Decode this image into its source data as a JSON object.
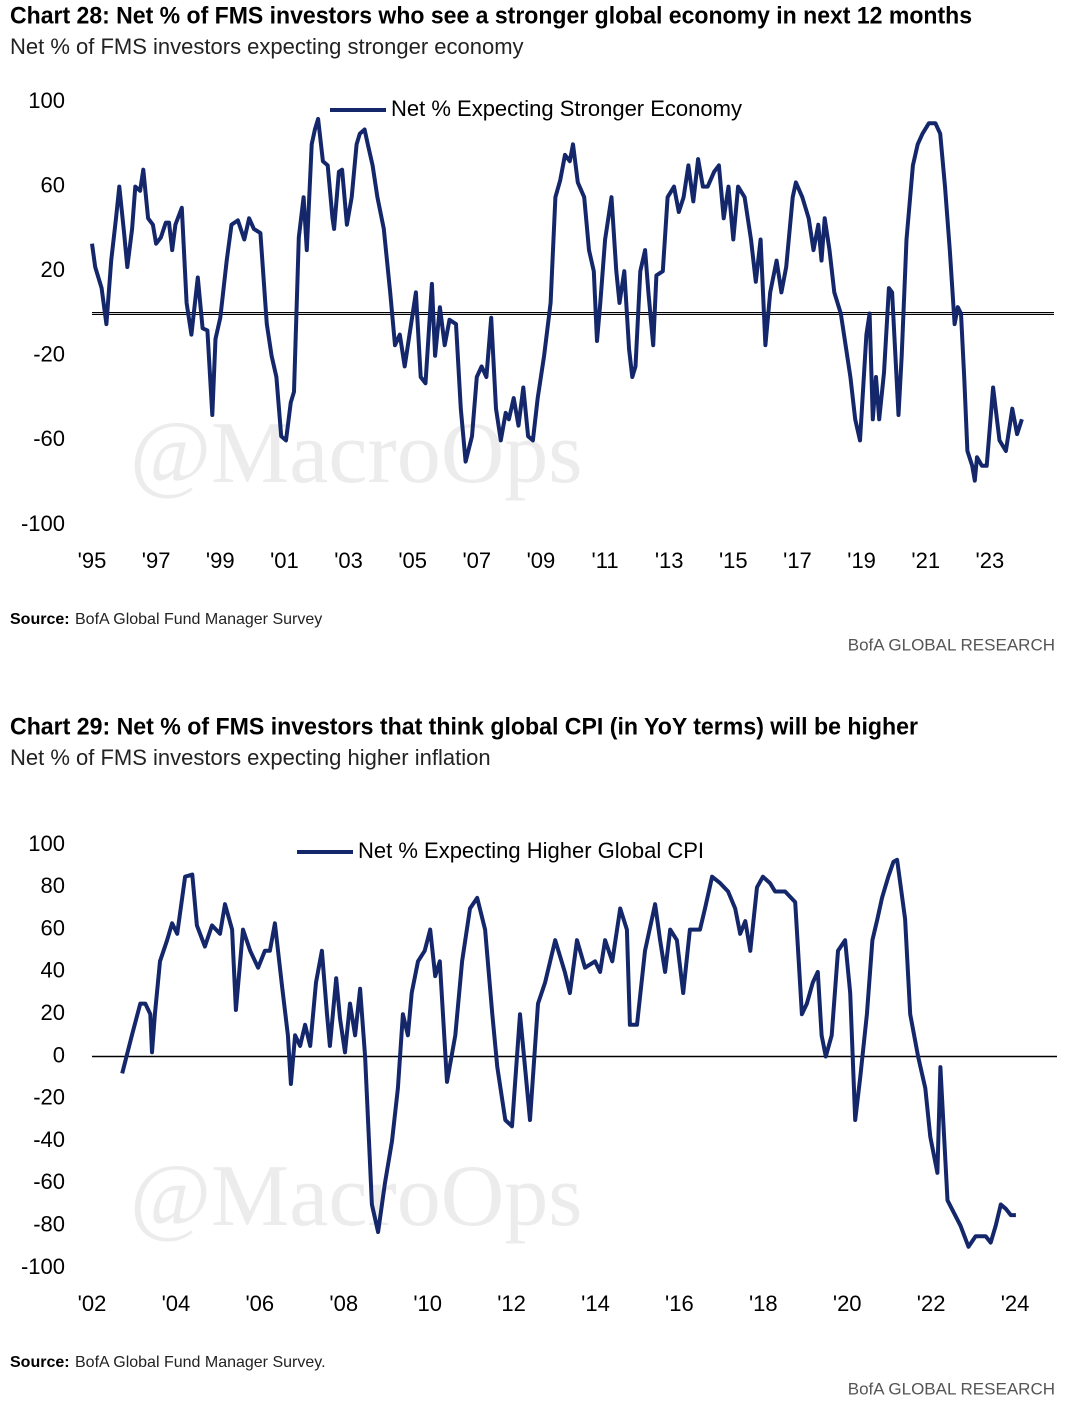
{
  "chart_data": [
    {
      "type": "line",
      "title": "Chart 28: Net % of FMS investors who see a stronger global economy in next 12 months",
      "subtitle": "Net % of FMS investors expecting stronger economy",
      "watermark": "@MacroOps",
      "source_label": "Source:",
      "source": "BofA Global Fund Manager Survey",
      "footer": "BofA GLOBAL RESEARCH",
      "legend": "top",
      "x": [
        1995.0,
        1995.1,
        1995.3,
        1995.45,
        1995.6,
        1995.75,
        1995.85,
        1996.0,
        1996.1,
        1996.25,
        1996.35,
        1996.5,
        1996.6,
        1996.75,
        1996.9,
        1997.0,
        1997.15,
        1997.3,
        1997.4,
        1997.5,
        1997.6,
        1997.8,
        1997.95,
        1998.1,
        1998.3,
        1998.45,
        1998.6,
        1998.75,
        1998.85,
        1999.0,
        1999.2,
        1999.35,
        1999.55,
        1999.75,
        1999.9,
        2000.05,
        2000.25,
        2000.45,
        2000.6,
        2000.75,
        2000.9,
        2001.05,
        2001.2,
        2001.3,
        2001.45,
        2001.6,
        2001.7,
        2001.85,
        2001.95,
        2002.05,
        2002.2,
        2002.35,
        2002.5,
        2002.55,
        2002.7,
        2002.8,
        2002.95,
        2003.1,
        2003.25,
        2003.35,
        2003.5,
        2003.6,
        2003.75,
        2003.9,
        2004.1,
        2004.3,
        2004.45,
        2004.6,
        2004.75,
        2004.9,
        2005.1,
        2005.25,
        2005.4,
        2005.6,
        2005.7,
        2005.85,
        2006.0,
        2006.15,
        2006.35,
        2006.5,
        2006.65,
        2006.85,
        2007.0,
        2007.15,
        2007.3,
        2007.45,
        2007.6,
        2007.75,
        2007.9,
        2008.0,
        2008.15,
        2008.3,
        2008.45,
        2008.6,
        2008.75,
        2008.9,
        2009.1,
        2009.3,
        2009.45,
        2009.6,
        2009.75,
        2009.9,
        2010.0,
        2010.15,
        2010.35,
        2010.5,
        2010.65,
        2010.75,
        2010.85,
        2011.0,
        2011.2,
        2011.35,
        2011.45,
        2011.6,
        2011.75,
        2011.85,
        2011.95,
        2012.1,
        2012.25,
        2012.35,
        2012.5,
        2012.6,
        2012.8,
        2012.95,
        2013.15,
        2013.3,
        2013.45,
        2013.6,
        2013.75,
        2013.9,
        2014.05,
        2014.2,
        2014.4,
        2014.55,
        2014.7,
        2014.85,
        2015.0,
        2015.15,
        2015.35,
        2015.55,
        2015.7,
        2015.85,
        2016.0,
        2016.15,
        2016.35,
        2016.5,
        2016.65,
        2016.85,
        2016.95,
        2017.15,
        2017.35,
        2017.5,
        2017.65,
        2017.75,
        2017.85,
        2018.0,
        2018.15,
        2018.35,
        2018.5,
        2018.65,
        2018.8,
        2018.95,
        2019.15,
        2019.25,
        2019.35,
        2019.45,
        2019.55,
        2019.7,
        2019.85,
        2019.95,
        2020.15,
        2020.25,
        2020.4,
        2020.6,
        2020.75,
        2020.9,
        2021.1,
        2021.3,
        2021.45,
        2021.6,
        2021.75,
        2021.9,
        2022.0,
        2022.1,
        2022.2,
        2022.3,
        2022.45,
        2022.53,
        2022.6,
        2022.75,
        2022.9,
        2023.1,
        2023.3,
        2023.5,
        2023.7,
        2023.85,
        2024.0
      ],
      "series": [
        {
          "name": "Net % Expecting Stronger Economy",
          "color": "#14276b",
          "values": [
            33,
            22,
            12,
            -5,
            25,
            45,
            60,
            38,
            22,
            40,
            60,
            58,
            68,
            45,
            42,
            33,
            36,
            43,
            43,
            30,
            42,
            50,
            5,
            -10,
            17,
            -7,
            -8,
            -48,
            -12,
            -2,
            25,
            42,
            44,
            35,
            45,
            40,
            38,
            -5,
            -20,
            -30,
            -58,
            -60,
            -42,
            -37,
            36,
            55,
            30,
            80,
            87,
            92,
            72,
            70,
            45,
            40,
            67,
            68,
            42,
            55,
            80,
            85,
            87,
            80,
            70,
            55,
            40,
            10,
            -15,
            -10,
            -25,
            -10,
            10,
            -30,
            -33,
            14,
            -20,
            3,
            -15,
            -3,
            -5,
            -45,
            -70,
            -58,
            -30,
            -25,
            -30,
            -2,
            -45,
            -60,
            -47,
            -50,
            -40,
            -53,
            -35,
            -58,
            -60,
            -40,
            -20,
            5,
            55,
            63,
            75,
            72,
            80,
            62,
            55,
            30,
            20,
            -13,
            5,
            35,
            55,
            20,
            5,
            20,
            -17,
            -30,
            -25,
            20,
            30,
            10,
            -15,
            18,
            20,
            55,
            60,
            48,
            55,
            70,
            53,
            73,
            60,
            60,
            67,
            70,
            45,
            60,
            35,
            60,
            55,
            35,
            15,
            35,
            -15,
            10,
            25,
            10,
            22,
            55,
            62,
            55,
            45,
            30,
            42,
            25,
            45,
            30,
            10,
            0,
            -15,
            -30,
            -50,
            -60,
            -10,
            0,
            -50,
            -30,
            -50,
            -28,
            12,
            10,
            -48,
            -20,
            35,
            70,
            80,
            85,
            90,
            90,
            85,
            60,
            30,
            -5,
            3,
            0,
            -30,
            -65,
            -72,
            -79,
            -68,
            -72,
            -72,
            -35,
            -60,
            -65,
            -45,
            -57,
            -50
          ]
        }
      ],
      "xlim": [
        1995,
        2025
      ],
      "ylim": [
        -100,
        100
      ],
      "xticks": [
        {
          "value": 1995,
          "label": "'95"
        },
        {
          "value": 1997,
          "label": "'97"
        },
        {
          "value": 1999,
          "label": "'99"
        },
        {
          "value": 2001,
          "label": "'01"
        },
        {
          "value": 2003,
          "label": "'03"
        },
        {
          "value": 2005,
          "label": "'05"
        },
        {
          "value": 2007,
          "label": "'07"
        },
        {
          "value": 2009,
          "label": "'09"
        },
        {
          "value": 2011,
          "label": "'11"
        },
        {
          "value": 2013,
          "label": "'13"
        },
        {
          "value": 2015,
          "label": "'15"
        },
        {
          "value": 2017,
          "label": "'17"
        },
        {
          "value": 2019,
          "label": "'19"
        },
        {
          "value": 2021,
          "label": "'21"
        },
        {
          "value": 2023,
          "label": "'23"
        }
      ],
      "yticks": [
        100,
        60,
        20,
        -20,
        -60,
        -100
      ]
    },
    {
      "type": "line",
      "title": "Chart 29: Net % of FMS investors that think global CPI (in YoY terms) will be higher",
      "subtitle": "Net % of FMS investors expecting higher inflation",
      "watermark": "@MacroOps",
      "source_label": "Source:",
      "source": "BofA Global Fund Manager Survey.",
      "footer": "BofA GLOBAL RESEARCH",
      "legend": "top",
      "x": [
        2002.72,
        2002.95,
        2003.15,
        2003.27,
        2003.39,
        2003.43,
        2003.5,
        2003.62,
        2003.79,
        2003.91,
        2004.03,
        2004.22,
        2004.39,
        2004.5,
        2004.69,
        2004.86,
        2005.05,
        2005.17,
        2005.34,
        2005.43,
        2005.6,
        2005.77,
        2005.96,
        2006.12,
        2006.24,
        2006.36,
        2006.53,
        2006.67,
        2006.74,
        2006.84,
        2006.96,
        2007.08,
        2007.2,
        2007.34,
        2007.48,
        2007.6,
        2007.67,
        2007.82,
        2007.91,
        2008.03,
        2008.15,
        2008.27,
        2008.39,
        2008.51,
        2008.67,
        2008.82,
        2008.98,
        2009.15,
        2009.29,
        2009.41,
        2009.53,
        2009.62,
        2009.77,
        2009.93,
        2010.06,
        2010.18,
        2010.29,
        2010.46,
        2010.66,
        2010.82,
        2011.01,
        2011.18,
        2011.37,
        2011.54,
        2011.66,
        2011.85,
        2012.01,
        2012.2,
        2012.44,
        2012.63,
        2012.8,
        2013.04,
        2013.27,
        2013.39,
        2013.56,
        2013.75,
        2013.99,
        2014.11,
        2014.23,
        2014.4,
        2014.59,
        2014.75,
        2014.82,
        2014.99,
        2015.18,
        2015.42,
        2015.54,
        2015.66,
        2015.78,
        2015.94,
        2016.09,
        2016.25,
        2016.49,
        2016.61,
        2016.78,
        2016.97,
        2017.16,
        2017.33,
        2017.45,
        2017.57,
        2017.69,
        2017.85,
        2017.99,
        2018.16,
        2018.28,
        2018.52,
        2018.76,
        2018.92,
        2019.04,
        2019.18,
        2019.3,
        2019.39,
        2019.49,
        2019.63,
        2019.78,
        2019.95,
        2020.07,
        2020.19,
        2020.31,
        2020.47,
        2020.6,
        2020.72,
        2020.83,
        2020.98,
        2021.1,
        2021.19,
        2021.38,
        2021.5,
        2021.69,
        2021.86,
        2021.98,
        2022.15,
        2022.22,
        2022.39,
        2022.7,
        2022.89,
        2023.06,
        2023.3,
        2023.42,
        2023.54,
        2023.66,
        2023.78,
        2023.9,
        2024.02
      ],
      "series": [
        {
          "name": "Net % Expecting Higher Global CPI",
          "color": "#14276b",
          "values": [
            -8,
            10,
            25,
            25,
            20,
            2,
            20,
            45,
            55,
            63,
            58,
            85,
            86,
            62,
            52,
            62,
            58,
            72,
            60,
            22,
            60,
            50,
            42,
            50,
            50,
            63,
            33,
            10,
            -13,
            10,
            5,
            15,
            5,
            35,
            50,
            20,
            5,
            37,
            18,
            2,
            25,
            10,
            32,
            0,
            -70,
            -83,
            -60,
            -40,
            -15,
            20,
            10,
            30,
            45,
            50,
            60,
            38,
            45,
            -12,
            10,
            45,
            70,
            75,
            60,
            20,
            -5,
            -30,
            -33,
            20,
            -30,
            25,
            35,
            55,
            40,
            30,
            55,
            42,
            45,
            40,
            55,
            45,
            70,
            60,
            15,
            15,
            50,
            72,
            55,
            40,
            60,
            55,
            30,
            60,
            60,
            70,
            85,
            82,
            78,
            70,
            58,
            64,
            50,
            80,
            85,
            82,
            78,
            78,
            73,
            20,
            25,
            35,
            40,
            10,
            0,
            10,
            50,
            55,
            30,
            -30,
            -10,
            20,
            55,
            65,
            75,
            85,
            92,
            93,
            65,
            20,
            0,
            -15,
            -38,
            -55,
            -5,
            -68,
            -80,
            -90,
            -85,
            -85,
            -88,
            -80,
            -70,
            -72,
            -75,
            -75
          ]
        }
      ],
      "xlim": [
        2002,
        2025
      ],
      "ylim": [
        -100,
        100
      ],
      "xticks": [
        {
          "value": 2002,
          "label": "'02"
        },
        {
          "value": 2004,
          "label": "'04"
        },
        {
          "value": 2006,
          "label": "'06"
        },
        {
          "value": 2008,
          "label": "'08"
        },
        {
          "value": 2010,
          "label": "'10"
        },
        {
          "value": 2012,
          "label": "'12"
        },
        {
          "value": 2014,
          "label": "'14"
        },
        {
          "value": 2016,
          "label": "'16"
        },
        {
          "value": 2018,
          "label": "'18"
        },
        {
          "value": 2020,
          "label": "'20"
        },
        {
          "value": 2022,
          "label": "'22"
        },
        {
          "value": 2024,
          "label": "'24"
        }
      ],
      "yticks": [
        100,
        80,
        60,
        40,
        20,
        0,
        -20,
        -40,
        -60,
        -80,
        -100
      ]
    }
  ]
}
